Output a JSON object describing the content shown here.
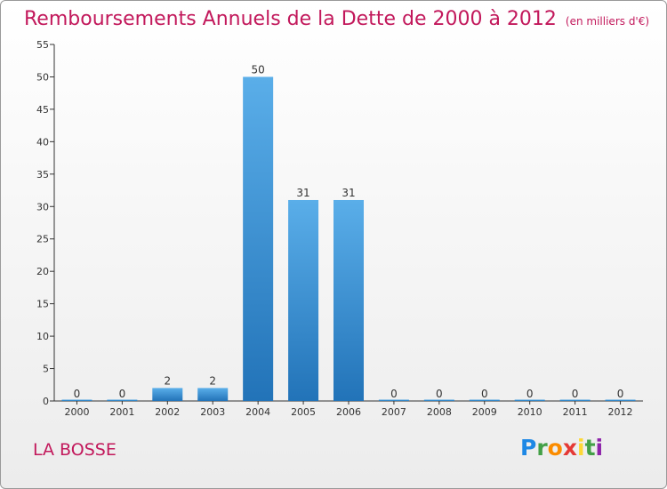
{
  "title": "Remboursements Annuels de la Dette de 2000 à 2012",
  "unit": "(en milliers d'€)",
  "commune": "LA BOSSE",
  "logo": [
    "P",
    "r",
    "o",
    "x",
    "i",
    "t",
    "i"
  ],
  "logo_colors": [
    "#1e88e5",
    "#43a047",
    "#fb8c00",
    "#e53935",
    "#fdd835",
    "#43a047",
    "#8e24aa"
  ],
  "colors": {
    "bar": "#3a8fd6",
    "bar_light": "#5aaae8",
    "bar_dark": "#2a78bf",
    "text_accent": "#c2185b"
  },
  "chart_data": {
    "type": "bar",
    "title": "Remboursements Annuels de la Dette de 2000 à 2012",
    "xlabel": "",
    "ylabel": "",
    "ylim": [
      0,
      55
    ],
    "yticks": [
      0,
      5,
      10,
      15,
      20,
      25,
      30,
      35,
      40,
      45,
      50,
      55
    ],
    "categories": [
      "2000",
      "2001",
      "2002",
      "2003",
      "2004",
      "2005",
      "2006",
      "2007",
      "2008",
      "2009",
      "2010",
      "2011",
      "2012"
    ],
    "values": [
      0,
      0,
      2,
      2,
      50,
      31,
      31,
      0,
      0,
      0,
      0,
      0,
      0
    ],
    "grid": false,
    "legend": "none"
  }
}
